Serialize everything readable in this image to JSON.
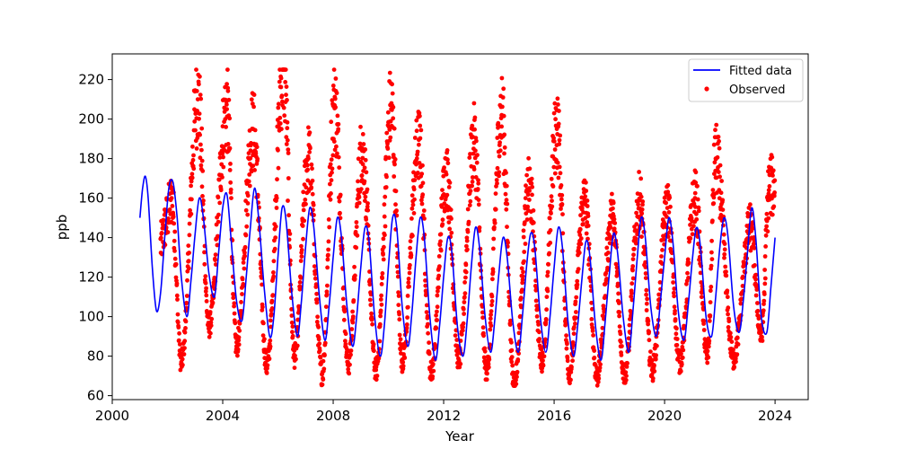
{
  "chart_data": {
    "type": "scatter",
    "title": "",
    "xlabel": "Year",
    "ylabel": "ppb",
    "xlim": [
      2000.0,
      2025.2
    ],
    "ylim": [
      58,
      233
    ],
    "xticks": [
      2000,
      2004,
      2008,
      2012,
      2016,
      2020,
      2024
    ],
    "yticks": [
      60,
      80,
      100,
      120,
      140,
      160,
      180,
      200,
      220
    ],
    "grid": false,
    "legend_position": "top-right",
    "colors": {
      "fitted": "#0000ff",
      "observed": "#ff0000"
    },
    "series": [
      {
        "name": "Fitted data",
        "kind": "line",
        "x": [
          2001.0,
          2001.1,
          2001.2,
          2001.3,
          2001.45,
          2001.6,
          2001.75,
          2001.9,
          2002.05,
          2002.2,
          2002.35,
          2002.5,
          2002.7,
          2002.85,
          2003.0,
          2003.15,
          2003.3,
          2003.5,
          2003.7,
          2003.85,
          2004.0,
          2004.15,
          2004.3,
          2004.5,
          2004.7,
          2004.85,
          2005.0,
          2005.15,
          2005.3,
          2005.5,
          2005.7,
          2005.85,
          2006.0,
          2006.15,
          2006.3,
          2006.5,
          2006.7,
          2006.85,
          2007.0,
          2007.15,
          2007.3,
          2007.5,
          2007.7,
          2007.85,
          2008.0,
          2008.15,
          2008.3,
          2008.5,
          2008.7,
          2008.85,
          2009.0,
          2009.15,
          2009.3,
          2009.5,
          2009.7,
          2009.85,
          2010.0,
          2010.15,
          2010.3,
          2010.5,
          2010.7,
          2010.85,
          2011.0,
          2011.15,
          2011.3,
          2011.5,
          2011.7,
          2011.85,
          2012.0,
          2012.15,
          2012.3,
          2012.5,
          2012.7,
          2012.85,
          2013.0,
          2013.15,
          2013.3,
          2013.5,
          2013.7,
          2013.85,
          2014.0,
          2014.15,
          2014.3,
          2014.5,
          2014.7,
          2014.85,
          2015.0,
          2015.15,
          2015.3,
          2015.5,
          2015.7,
          2015.85,
          2016.0,
          2016.15,
          2016.3,
          2016.5,
          2016.7,
          2016.85,
          2017.0,
          2017.15,
          2017.3,
          2017.5,
          2017.7,
          2017.85,
          2018.0,
          2018.15,
          2018.3,
          2018.5,
          2018.7,
          2018.85,
          2019.0,
          2019.15,
          2019.3,
          2019.5,
          2019.7,
          2019.85,
          2020.0,
          2020.15,
          2020.3,
          2020.5,
          2020.7,
          2020.85,
          2021.0,
          2021.15,
          2021.3,
          2021.5,
          2021.7,
          2021.85,
          2022.0,
          2022.15,
          2022.3,
          2022.5,
          2022.7,
          2022.85,
          2023.0,
          2023.15,
          2023.3,
          2023.5,
          2023.7,
          2023.85,
          2024.0
        ],
        "y": [
          150,
          165,
          171,
          160,
          125,
          103,
          112,
          140,
          165,
          168,
          150,
          120,
          100,
          118,
          142,
          160,
          150,
          122,
          110,
          132,
          155,
          162,
          140,
          108,
          98,
          120,
          145,
          165,
          150,
          115,
          90,
          100,
          130,
          155,
          148,
          112,
          90,
          108,
          135,
          155,
          145,
          110,
          88,
          105,
          130,
          150,
          140,
          105,
          85,
          100,
          125,
          145,
          138,
          100,
          80,
          95,
          125,
          150,
          145,
          105,
          85,
          102,
          130,
          150,
          140,
          100,
          78,
          95,
          120,
          140,
          132,
          95,
          80,
          98,
          125,
          145,
          135,
          100,
          82,
          98,
          122,
          140,
          130,
          98,
          82,
          100,
          125,
          142,
          135,
          100,
          82,
          100,
          125,
          145,
          135,
          98,
          80,
          95,
          118,
          138,
          130,
          95,
          78,
          98,
          122,
          142,
          132,
          100,
          82,
          102,
          128,
          150,
          140,
          105,
          90,
          108,
          130,
          150,
          138,
          102,
          88,
          105,
          128,
          145,
          135,
          100,
          90,
          110,
          135,
          150,
          140,
          105,
          92,
          108,
          132,
          155,
          140,
          100,
          92,
          115,
          140
        ]
      },
      {
        "name": "Observed",
        "kind": "scatter",
        "peaks": [
          {
            "x": 2002.15,
            "y": 160
          },
          {
            "x": 2003.1,
            "y": 210
          },
          {
            "x": 2004.15,
            "y": 205
          },
          {
            "x": 2005.1,
            "y": 195
          },
          {
            "x": 2006.2,
            "y": 225
          },
          {
            "x": 2007.1,
            "y": 180
          },
          {
            "x": 2008.05,
            "y": 207
          },
          {
            "x": 2009.05,
            "y": 184
          },
          {
            "x": 2010.1,
            "y": 205
          },
          {
            "x": 2011.1,
            "y": 187
          },
          {
            "x": 2012.1,
            "y": 172
          },
          {
            "x": 2013.1,
            "y": 188
          },
          {
            "x": 2014.1,
            "y": 202
          },
          {
            "x": 2015.1,
            "y": 165
          },
          {
            "x": 2016.1,
            "y": 195
          },
          {
            "x": 2017.1,
            "y": 159
          },
          {
            "x": 2018.1,
            "y": 150
          },
          {
            "x": 2019.1,
            "y": 159
          },
          {
            "x": 2020.1,
            "y": 155
          },
          {
            "x": 2021.1,
            "y": 160
          },
          {
            "x": 2021.85,
            "y": 180
          },
          {
            "x": 2023.1,
            "y": 145
          },
          {
            "x": 2023.8,
            "y": 166
          }
        ],
        "troughs": [
          {
            "x": 2002.5,
            "y": 77
          },
          {
            "x": 2003.5,
            "y": 95
          },
          {
            "x": 2004.5,
            "y": 85
          },
          {
            "x": 2005.6,
            "y": 75
          },
          {
            "x": 2006.6,
            "y": 80
          },
          {
            "x": 2007.6,
            "y": 71
          },
          {
            "x": 2008.55,
            "y": 76
          },
          {
            "x": 2009.55,
            "y": 73
          },
          {
            "x": 2010.5,
            "y": 78
          },
          {
            "x": 2011.55,
            "y": 72
          },
          {
            "x": 2012.55,
            "y": 78
          },
          {
            "x": 2013.55,
            "y": 73
          },
          {
            "x": 2014.55,
            "y": 66
          },
          {
            "x": 2015.55,
            "y": 78
          },
          {
            "x": 2016.55,
            "y": 72
          },
          {
            "x": 2017.55,
            "y": 70
          },
          {
            "x": 2018.55,
            "y": 71
          },
          {
            "x": 2019.55,
            "y": 73
          },
          {
            "x": 2020.55,
            "y": 77
          },
          {
            "x": 2021.55,
            "y": 80
          },
          {
            "x": 2022.5,
            "y": 79
          },
          {
            "x": 2023.5,
            "y": 90
          }
        ],
        "first_x": 2001.75,
        "last_x": 2024.0
      }
    ]
  }
}
